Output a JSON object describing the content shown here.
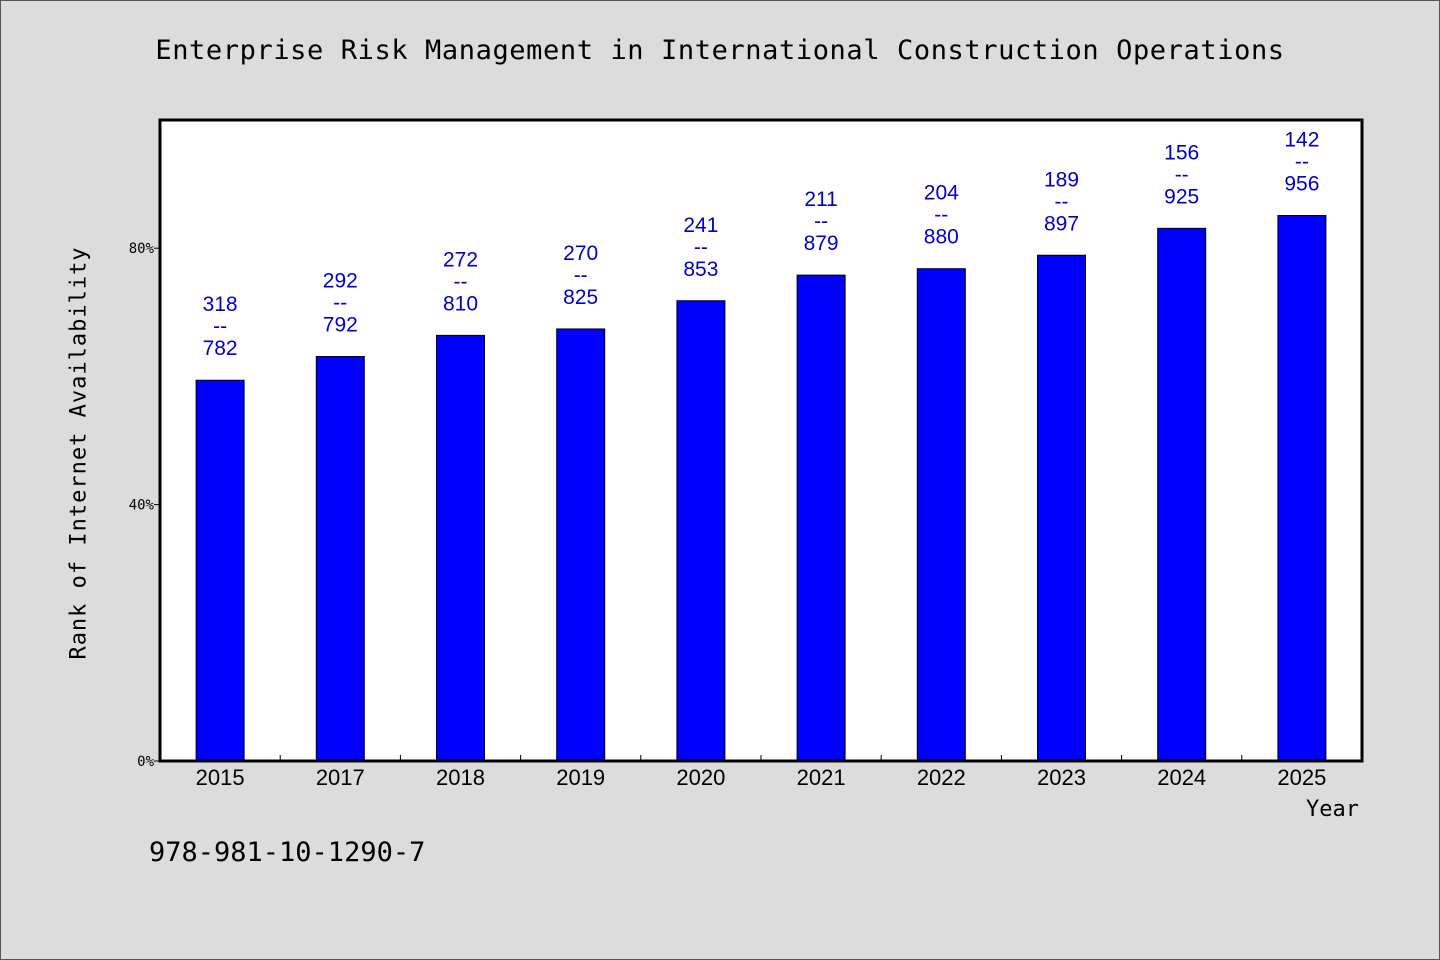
{
  "chart_data": {
    "type": "bar",
    "title": "Enterprise Risk Management in International Construction Operations",
    "xlabel": "Year",
    "ylabel": "Rank of Internet Availability",
    "categories": [
      "2015",
      "2017",
      "2018",
      "2019",
      "2020",
      "2021",
      "2022",
      "2023",
      "2024",
      "2025"
    ],
    "values": [
      59.4,
      63.1,
      66.4,
      67.4,
      71.8,
      75.8,
      76.8,
      78.9,
      83.1,
      85.1
    ],
    "labels_top": [
      "318",
      "292",
      "272",
      "270",
      "241",
      "211",
      "204",
      "189",
      "156",
      "142"
    ],
    "labels_separator": "--",
    "labels_bottom": [
      "782",
      "792",
      "810",
      "825",
      "853",
      "879",
      "880",
      "897",
      "925",
      "956"
    ],
    "ylim": [
      0,
      100
    ],
    "yticks": [
      {
        "value": 0,
        "label": "0%"
      },
      {
        "value": 40,
        "label": "40%"
      },
      {
        "value": 80,
        "label": "80%"
      }
    ],
    "grid": false,
    "colors": {
      "bar": "#0000ff",
      "label": "#0000cc",
      "background": "#dcdcdc",
      "plot_background": "#ffffff"
    }
  },
  "footer": {
    "code": "978-981-10-1290-7"
  }
}
